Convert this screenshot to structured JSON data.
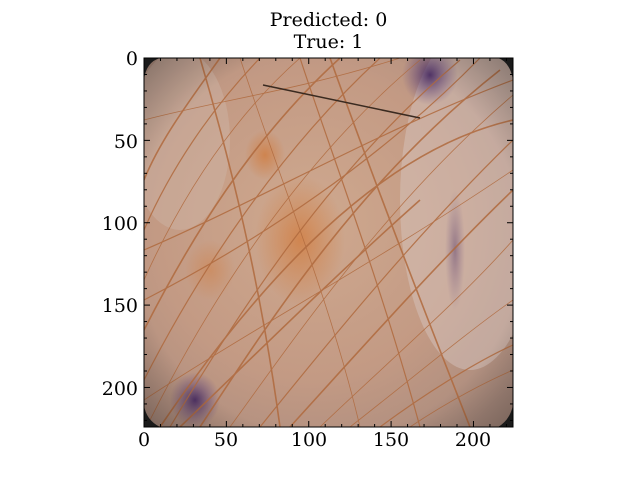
{
  "figure": {
    "title_lines": [
      "Predicted: 0",
      "True: 1"
    ],
    "image_description_key": "dermoscopy-skin-lesion-with-hairs",
    "image_extent": {
      "x": [
        0,
        224
      ],
      "y": [
        0,
        224
      ]
    },
    "x_ticks": [
      0,
      50,
      100,
      150,
      200
    ],
    "y_ticks": [
      0,
      50,
      100,
      150,
      200
    ],
    "x_tick_labels": [
      "0",
      "50",
      "100",
      "150",
      "200"
    ],
    "y_tick_labels": [
      "0",
      "50",
      "100",
      "150",
      "200"
    ],
    "colors": {
      "skin_base": "#c9a089",
      "hair": "#b06a3e",
      "pigment": "#d08a55",
      "purple_ink": "#5b3a6e",
      "frame": "#000000"
    }
  }
}
